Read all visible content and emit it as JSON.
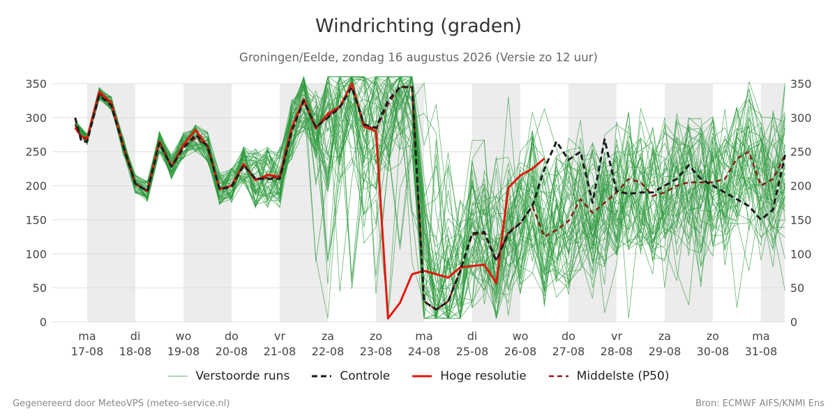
{
  "chart_data": {
    "type": "line",
    "title": "Windrichting (graden)",
    "subtitle": "Groningen/Eelde, zondag 16 augustus 2026 (Versie zo 12 uur)",
    "ylim": [
      0,
      350
    ],
    "yticks": [
      0,
      50,
      100,
      150,
      200,
      250,
      300,
      350
    ],
    "xlim": [
      0,
      14.5
    ],
    "days": [
      {
        "day": "ma",
        "date": "17-08"
      },
      {
        "day": "di",
        "date": "18-08"
      },
      {
        "day": "wo",
        "date": "19-08"
      },
      {
        "day": "do",
        "date": "20-08"
      },
      {
        "day": "vr",
        "date": "21-08"
      },
      {
        "day": "za",
        "date": "22-08"
      },
      {
        "day": "zo",
        "date": "23-08"
      },
      {
        "day": "ma",
        "date": "24-08"
      },
      {
        "day": "di",
        "date": "25-08"
      },
      {
        "day": "wo",
        "date": "26-08"
      },
      {
        "day": "do",
        "date": "27-08"
      },
      {
        "day": "vr",
        "date": "28-08"
      },
      {
        "day": "za",
        "date": "29-08"
      },
      {
        "day": "zo",
        "date": "30-08"
      },
      {
        "day": "ma",
        "date": "31-08"
      }
    ],
    "shaded_days": [
      0,
      2,
      4,
      6,
      8,
      10,
      12,
      14
    ],
    "grid": true,
    "legend_position": "bottom",
    "series": [
      {
        "name": "Hoge resolutie",
        "color": "#e3170d",
        "style": "solid",
        "x": [
          -0.25,
          -0.12,
          0,
          0.25,
          0.5,
          0.75,
          1.0,
          1.25,
          1.5,
          1.75,
          2.0,
          2.25,
          2.5,
          2.75,
          3.0,
          3.25,
          3.5,
          3.75,
          4.0,
          4.25,
          4.5,
          4.75,
          5.0,
          5.25,
          5.5,
          5.75,
          6.0,
          6.25,
          6.5,
          6.75,
          7.0,
          7.25,
          7.5,
          7.75,
          8.0,
          8.25,
          8.5,
          8.75,
          9.0,
          9.25,
          9.5
        ],
        "y": [
          285,
          272,
          270,
          338,
          322,
          258,
          203,
          192,
          265,
          228,
          260,
          282,
          258,
          195,
          200,
          232,
          208,
          216,
          213,
          285,
          327,
          284,
          306,
          316,
          350,
          287,
          280,
          5,
          28,
          70,
          75,
          70,
          65,
          80,
          82,
          84,
          57,
          197,
          215,
          225,
          240
        ]
      },
      {
        "name": "Controle",
        "color": "#1a1a1a",
        "style": "dashed",
        "x": [
          -0.25,
          -0.12,
          0,
          0.25,
          0.5,
          0.75,
          1.0,
          1.25,
          1.5,
          1.75,
          2.0,
          2.25,
          2.5,
          2.75,
          3.0,
          3.25,
          3.5,
          3.75,
          4.0,
          4.25,
          4.5,
          4.75,
          5.0,
          5.25,
          5.5,
          5.75,
          6.0,
          6.25,
          6.5,
          6.75,
          7.0,
          7.25,
          7.5,
          7.75,
          8.0,
          8.25,
          8.5,
          8.75,
          9.0,
          9.25,
          9.5,
          9.75,
          10.0,
          10.25,
          10.5,
          10.75,
          11.0,
          11.25,
          11.5,
          11.75,
          12.0,
          12.25,
          12.5,
          12.75,
          13.0,
          13.25,
          13.5,
          13.75,
          14.0,
          14.25,
          14.5
        ],
        "y": [
          300,
          265,
          265,
          333,
          318,
          258,
          203,
          192,
          263,
          228,
          255,
          275,
          258,
          195,
          198,
          230,
          210,
          210,
          210,
          280,
          325,
          286,
          300,
          315,
          345,
          290,
          285,
          325,
          345,
          345,
          30,
          18,
          30,
          75,
          130,
          132,
          90,
          130,
          145,
          170,
          225,
          265,
          238,
          250,
          175,
          268,
          192,
          188,
          190,
          190,
          200,
          210,
          230,
          210,
          200,
          190,
          180,
          170,
          150,
          165,
          245
        ]
      },
      {
        "name": "Middelste (P50)",
        "color": "#8b1a1a",
        "style": "dashed",
        "x": [
          -0.25,
          -0.12,
          0,
          0.25,
          0.5,
          0.75,
          1.0,
          1.25,
          1.5,
          1.75,
          2.0,
          2.25,
          2.5,
          2.75,
          3.0,
          3.25,
          3.5,
          3.75,
          4.0,
          4.25,
          4.5,
          4.75,
          5.0,
          5.25,
          5.5,
          5.75,
          6.0,
          6.25,
          6.5,
          6.75,
          7.0,
          7.25,
          7.5,
          7.75,
          8.0,
          8.25,
          8.5,
          8.75,
          9.0,
          9.25,
          9.5,
          9.75,
          10.0,
          10.25,
          10.5,
          10.75,
          11.0,
          11.25,
          11.5,
          11.75,
          12.0,
          12.25,
          12.5,
          12.75,
          13.0,
          13.25,
          13.5,
          13.75,
          14.0,
          14.25,
          14.5
        ],
        "y": [
          290,
          270,
          268,
          335,
          320,
          258,
          203,
          192,
          264,
          228,
          258,
          270,
          258,
          195,
          200,
          230,
          210,
          212,
          212,
          282,
          324,
          285,
          302,
          315,
          345,
          290,
          282,
          320,
          345,
          345,
          30,
          18,
          30,
          75,
          128,
          130,
          90,
          132,
          145,
          170,
          125,
          135,
          148,
          180,
          160,
          175,
          190,
          210,
          205,
          185,
          190,
          200,
          205,
          205,
          205,
          210,
          240,
          250,
          200,
          210,
          245
        ]
      },
      {
        "name": "Verstoorde runs",
        "color": "#2e9b3e",
        "style": "thin",
        "members": 50
      }
    ]
  },
  "legend": {
    "items": [
      {
        "label": "Verstoorde runs"
      },
      {
        "label": "Controle"
      },
      {
        "label": "Hoge resolutie"
      },
      {
        "label": "Middelste (P50)"
      }
    ]
  },
  "footer": {
    "left": "Gegenereerd door MeteoVPS (meteo-service.nl)",
    "right": "Bron: ECMWF AIFS/KNMI Ens"
  }
}
